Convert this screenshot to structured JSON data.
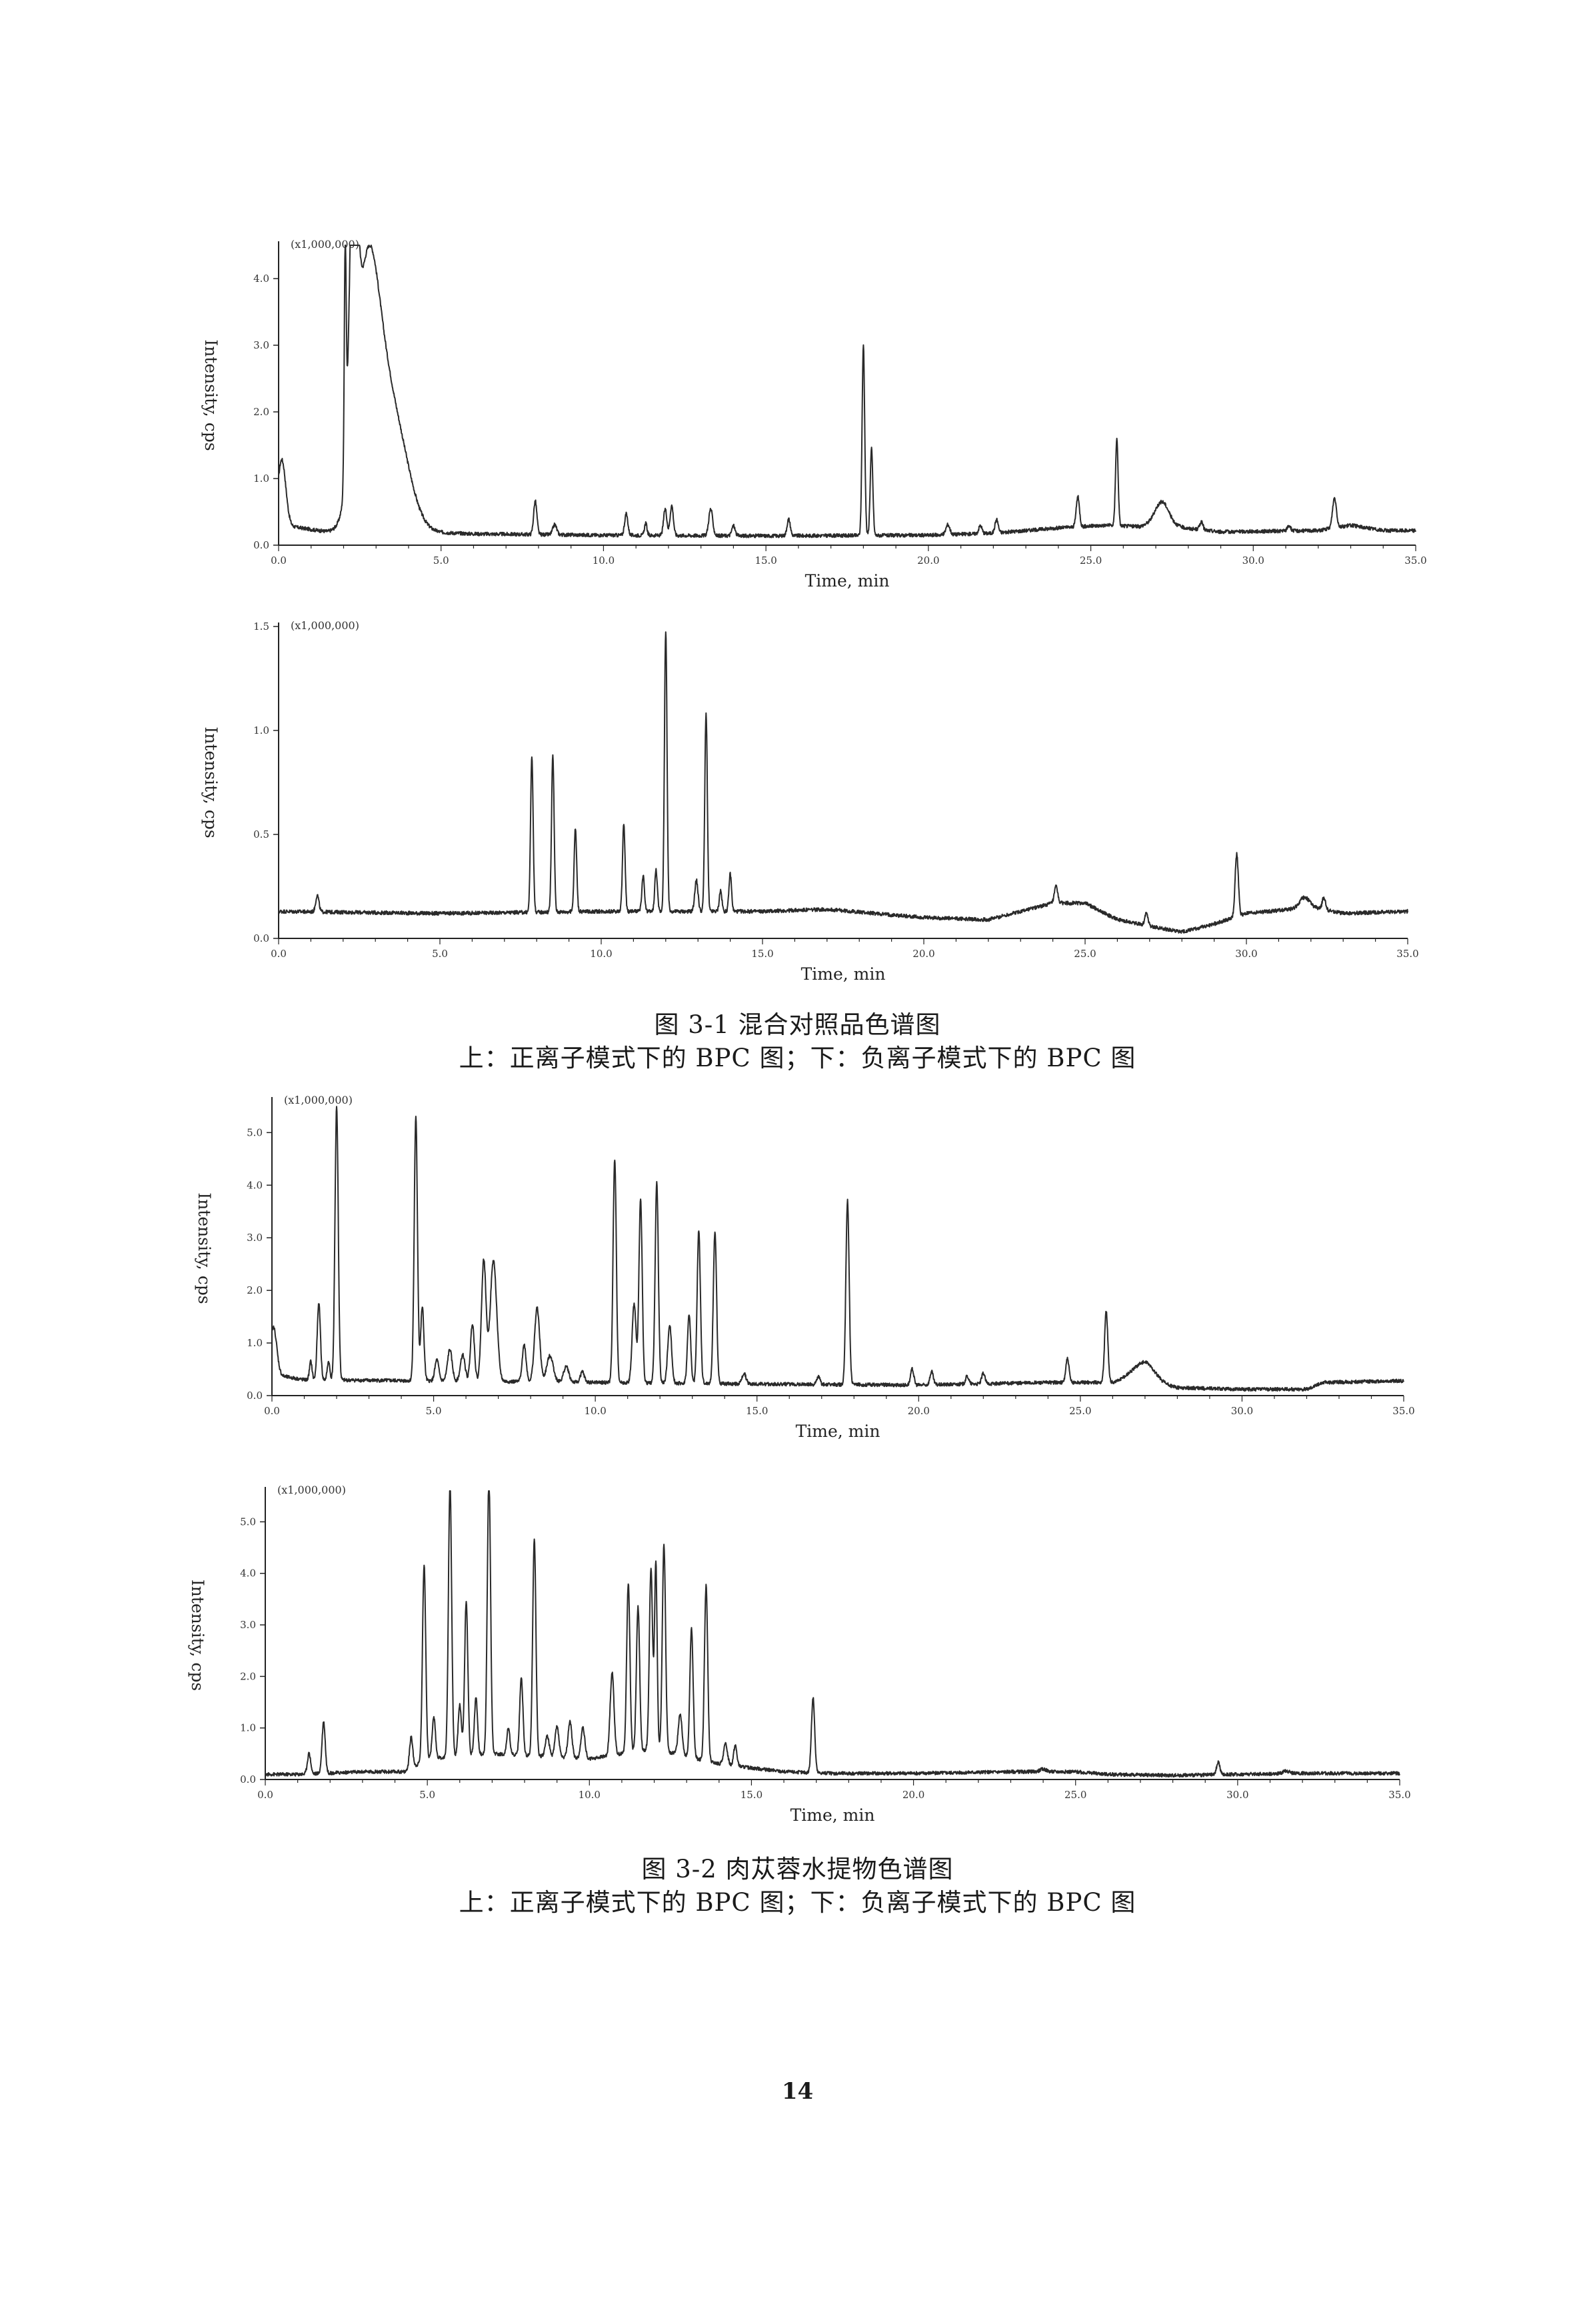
{
  "captions": [
    {
      "title": "图 3-1  混合对照品色谱图",
      "subtitle": "上：正离子模式下的 BPC 图；下：负离子模式下的 BPC 图"
    },
    {
      "title": "图 3-2  肉苁蓉水提物色谱图",
      "subtitle": "上：正离子模式下的 BPC 图；下：负离子模式下的 BPC 图"
    }
  ],
  "page_number": "14",
  "chart_data": [
    {
      "type": "line",
      "scale_label": "(x1,000,000)",
      "xlabel": "Time, min",
      "ylabel": "Intensity, cps",
      "xlim": [
        0,
        35
      ],
      "ylim": [
        0,
        4.5
      ],
      "xticks": [
        "0.0",
        "5.0",
        "10.0",
        "15.0",
        "20.0",
        "25.0",
        "30.0",
        "35.0"
      ],
      "yticks": [
        "0.0",
        "1.0",
        "2.0",
        "3.0",
        "4.0"
      ],
      "grid": false,
      "baseline": [
        [
          0,
          0.35
        ],
        [
          0.4,
          0.28
        ],
        [
          1.5,
          0.2
        ],
        [
          2.0,
          0.18
        ],
        [
          4.5,
          0.2
        ],
        [
          6.0,
          0.17
        ],
        [
          10.0,
          0.15
        ],
        [
          15.0,
          0.14
        ],
        [
          20.0,
          0.15
        ],
        [
          22.0,
          0.18
        ],
        [
          24.0,
          0.26
        ],
        [
          25.5,
          0.3
        ],
        [
          26.5,
          0.28
        ],
        [
          27.0,
          0.35
        ],
        [
          28.0,
          0.25
        ],
        [
          29.0,
          0.2
        ],
        [
          32.0,
          0.22
        ],
        [
          33.0,
          0.3
        ],
        [
          34.0,
          0.22
        ],
        [
          35.0,
          0.22
        ]
      ],
      "peaks": [
        [
          0.1,
          0.95,
          0.12
        ],
        [
          2.05,
          3.3,
          0.03
        ],
        [
          2.3,
          4.2,
          0.12
        ],
        [
          2.7,
          3.2,
          0.35
        ],
        [
          3.2,
          1.8,
          0.45
        ],
        [
          3.8,
          0.7,
          0.4
        ],
        [
          7.9,
          0.5,
          0.05
        ],
        [
          8.5,
          0.15,
          0.06
        ],
        [
          10.7,
          0.32,
          0.05
        ],
        [
          11.3,
          0.18,
          0.04
        ],
        [
          11.9,
          0.4,
          0.05
        ],
        [
          12.1,
          0.45,
          0.05
        ],
        [
          13.3,
          0.4,
          0.06
        ],
        [
          14.0,
          0.15,
          0.05
        ],
        [
          15.7,
          0.25,
          0.05
        ],
        [
          18.0,
          2.85,
          0.04
        ],
        [
          18.25,
          1.3,
          0.04
        ],
        [
          20.6,
          0.15,
          0.06
        ],
        [
          21.6,
          0.12,
          0.05
        ],
        [
          22.1,
          0.2,
          0.05
        ],
        [
          24.6,
          0.45,
          0.05
        ],
        [
          25.8,
          1.3,
          0.04
        ],
        [
          27.2,
          0.32,
          0.2
        ],
        [
          28.4,
          0.12,
          0.05
        ],
        [
          31.1,
          0.08,
          0.05
        ],
        [
          32.5,
          0.45,
          0.06
        ]
      ]
    },
    {
      "type": "line",
      "scale_label": "(x1,000,000)",
      "xlabel": "Time, min",
      "ylabel": "Intensity, cps",
      "xlim": [
        0,
        35
      ],
      "ylim": [
        0,
        1.5
      ],
      "xticks": [
        "0.0",
        "5.0",
        "10.0",
        "15.0",
        "20.0",
        "25.0",
        "30.0",
        "35.0"
      ],
      "yticks": [
        "0.0",
        "0.5",
        "1.0",
        "1.5"
      ],
      "grid": false,
      "baseline": [
        [
          0,
          0.13
        ],
        [
          5,
          0.12
        ],
        [
          10,
          0.13
        ],
        [
          15,
          0.13
        ],
        [
          17,
          0.14
        ],
        [
          20,
          0.1
        ],
        [
          22,
          0.09
        ],
        [
          24,
          0.17
        ],
        [
          25,
          0.17
        ],
        [
          26,
          0.09
        ],
        [
          27,
          0.06
        ],
        [
          28,
          0.03
        ],
        [
          29,
          0.07
        ],
        [
          30,
          0.12
        ],
        [
          32,
          0.15
        ],
        [
          33,
          0.12
        ],
        [
          35,
          0.13
        ]
      ],
      "peaks": [
        [
          1.2,
          0.08,
          0.05
        ],
        [
          7.85,
          0.75,
          0.04
        ],
        [
          8.5,
          0.75,
          0.04
        ],
        [
          9.2,
          0.4,
          0.04
        ],
        [
          10.7,
          0.42,
          0.04
        ],
        [
          11.3,
          0.17,
          0.04
        ],
        [
          11.7,
          0.2,
          0.04
        ],
        [
          12.0,
          1.35,
          0.04
        ],
        [
          12.95,
          0.15,
          0.05
        ],
        [
          13.25,
          0.95,
          0.04
        ],
        [
          13.7,
          0.1,
          0.04
        ],
        [
          14.0,
          0.18,
          0.04
        ],
        [
          24.1,
          0.08,
          0.05
        ],
        [
          26.9,
          0.06,
          0.05
        ],
        [
          29.7,
          0.3,
          0.05
        ],
        [
          31.8,
          0.05,
          0.15
        ],
        [
          32.4,
          0.06,
          0.05
        ]
      ]
    },
    {
      "type": "line",
      "scale_label": "(x1,000,000)",
      "xlabel": "Time, min",
      "ylabel": "Intensity, cps",
      "xlim": [
        0,
        35
      ],
      "ylim": [
        0,
        5.6
      ],
      "xticks": [
        "0.0",
        "5.0",
        "10.0",
        "15.0",
        "20.0",
        "25.0",
        "30.0",
        "35.0"
      ],
      "yticks": [
        "0.0",
        "1.0",
        "2.0",
        "3.0",
        "4.0",
        "5.0"
      ],
      "grid": false,
      "baseline": [
        [
          0,
          0.4
        ],
        [
          1,
          0.3
        ],
        [
          5,
          0.28
        ],
        [
          10,
          0.25
        ],
        [
          15,
          0.22
        ],
        [
          20,
          0.2
        ],
        [
          24,
          0.25
        ],
        [
          26,
          0.25
        ],
        [
          26.5,
          0.35
        ],
        [
          28,
          0.15
        ],
        [
          30,
          0.12
        ],
        [
          32,
          0.12
        ],
        [
          32.5,
          0.25
        ],
        [
          35,
          0.28
        ]
      ],
      "peaks": [
        [
          0.05,
          0.9,
          0.1
        ],
        [
          1.2,
          0.35,
          0.04
        ],
        [
          1.45,
          1.45,
          0.05
        ],
        [
          1.75,
          0.35,
          0.04
        ],
        [
          2.0,
          5.2,
          0.05
        ],
        [
          4.45,
          5.0,
          0.05
        ],
        [
          4.65,
          1.4,
          0.05
        ],
        [
          5.1,
          0.4,
          0.06
        ],
        [
          5.5,
          0.6,
          0.07
        ],
        [
          5.9,
          0.5,
          0.07
        ],
        [
          6.2,
          1.1,
          0.06
        ],
        [
          6.55,
          2.3,
          0.07
        ],
        [
          6.85,
          2.3,
          0.1
        ],
        [
          7.8,
          0.7,
          0.06
        ],
        [
          8.2,
          1.4,
          0.08
        ],
        [
          8.6,
          0.5,
          0.1
        ],
        [
          9.1,
          0.3,
          0.08
        ],
        [
          9.6,
          0.2,
          0.06
        ],
        [
          10.6,
          4.25,
          0.05
        ],
        [
          11.2,
          1.5,
          0.06
        ],
        [
          11.4,
          3.5,
          0.05
        ],
        [
          11.9,
          3.8,
          0.05
        ],
        [
          12.3,
          1.1,
          0.06
        ],
        [
          12.9,
          1.3,
          0.05
        ],
        [
          13.2,
          2.9,
          0.05
        ],
        [
          13.7,
          2.9,
          0.05
        ],
        [
          14.6,
          0.2,
          0.06
        ],
        [
          16.9,
          0.15,
          0.05
        ],
        [
          17.8,
          3.5,
          0.05
        ],
        [
          19.8,
          0.3,
          0.05
        ],
        [
          20.4,
          0.25,
          0.05
        ],
        [
          21.5,
          0.15,
          0.05
        ],
        [
          22.0,
          0.2,
          0.05
        ],
        [
          24.6,
          0.45,
          0.05
        ],
        [
          25.8,
          1.35,
          0.05
        ],
        [
          27.0,
          0.35,
          0.3
        ]
      ]
    },
    {
      "type": "line",
      "scale_label": "(x1,000,000)",
      "xlabel": "Time, min",
      "ylabel": "Intensity, cps",
      "xlim": [
        0,
        35
      ],
      "ylim": [
        0,
        5.6
      ],
      "xticks": [
        "0.0",
        "5.0",
        "10.0",
        "15.0",
        "20.0",
        "25.0",
        "30.0",
        "35.0"
      ],
      "yticks": [
        "0.0",
        "1.0",
        "2.0",
        "3.0",
        "4.0",
        "5.0"
      ],
      "grid": false,
      "baseline": [
        [
          0,
          0.1
        ],
        [
          1,
          0.1
        ],
        [
          3,
          0.15
        ],
        [
          4.3,
          0.15
        ],
        [
          5,
          0.4
        ],
        [
          7,
          0.5
        ],
        [
          10,
          0.4
        ],
        [
          12,
          0.6
        ],
        [
          14,
          0.3
        ],
        [
          16,
          0.15
        ],
        [
          17.5,
          0.12
        ],
        [
          20,
          0.12
        ],
        [
          23,
          0.15
        ],
        [
          25,
          0.15
        ],
        [
          26,
          0.1
        ],
        [
          28,
          0.08
        ],
        [
          30,
          0.1
        ],
        [
          32,
          0.12
        ],
        [
          35,
          0.12
        ]
      ],
      "peaks": [
        [
          1.35,
          0.4,
          0.05
        ],
        [
          1.8,
          1.0,
          0.05
        ],
        [
          4.5,
          0.6,
          0.05
        ],
        [
          4.9,
          3.8,
          0.05
        ],
        [
          5.2,
          0.8,
          0.05
        ],
        [
          5.7,
          5.3,
          0.05
        ],
        [
          6.0,
          1.0,
          0.05
        ],
        [
          6.2,
          3.0,
          0.05
        ],
        [
          6.5,
          1.1,
          0.05
        ],
        [
          6.9,
          5.4,
          0.05
        ],
        [
          7.5,
          0.5,
          0.05
        ],
        [
          7.9,
          1.5,
          0.05
        ],
        [
          8.3,
          4.2,
          0.05
        ],
        [
          8.7,
          0.4,
          0.06
        ],
        [
          9.0,
          0.6,
          0.06
        ],
        [
          9.4,
          0.7,
          0.06
        ],
        [
          9.8,
          0.6,
          0.06
        ],
        [
          10.7,
          1.6,
          0.06
        ],
        [
          11.2,
          3.3,
          0.05
        ],
        [
          11.5,
          2.8,
          0.05
        ],
        [
          11.9,
          3.5,
          0.05
        ],
        [
          12.05,
          3.6,
          0.04
        ],
        [
          12.3,
          4.0,
          0.05
        ],
        [
          12.8,
          0.8,
          0.06
        ],
        [
          13.15,
          2.5,
          0.05
        ],
        [
          13.6,
          3.4,
          0.05
        ],
        [
          14.2,
          0.4,
          0.06
        ],
        [
          14.5,
          0.4,
          0.05
        ],
        [
          16.9,
          1.45,
          0.05
        ],
        [
          24.0,
          0.05,
          0.1
        ],
        [
          29.4,
          0.25,
          0.05
        ],
        [
          31.5,
          0.05,
          0.1
        ]
      ]
    }
  ]
}
